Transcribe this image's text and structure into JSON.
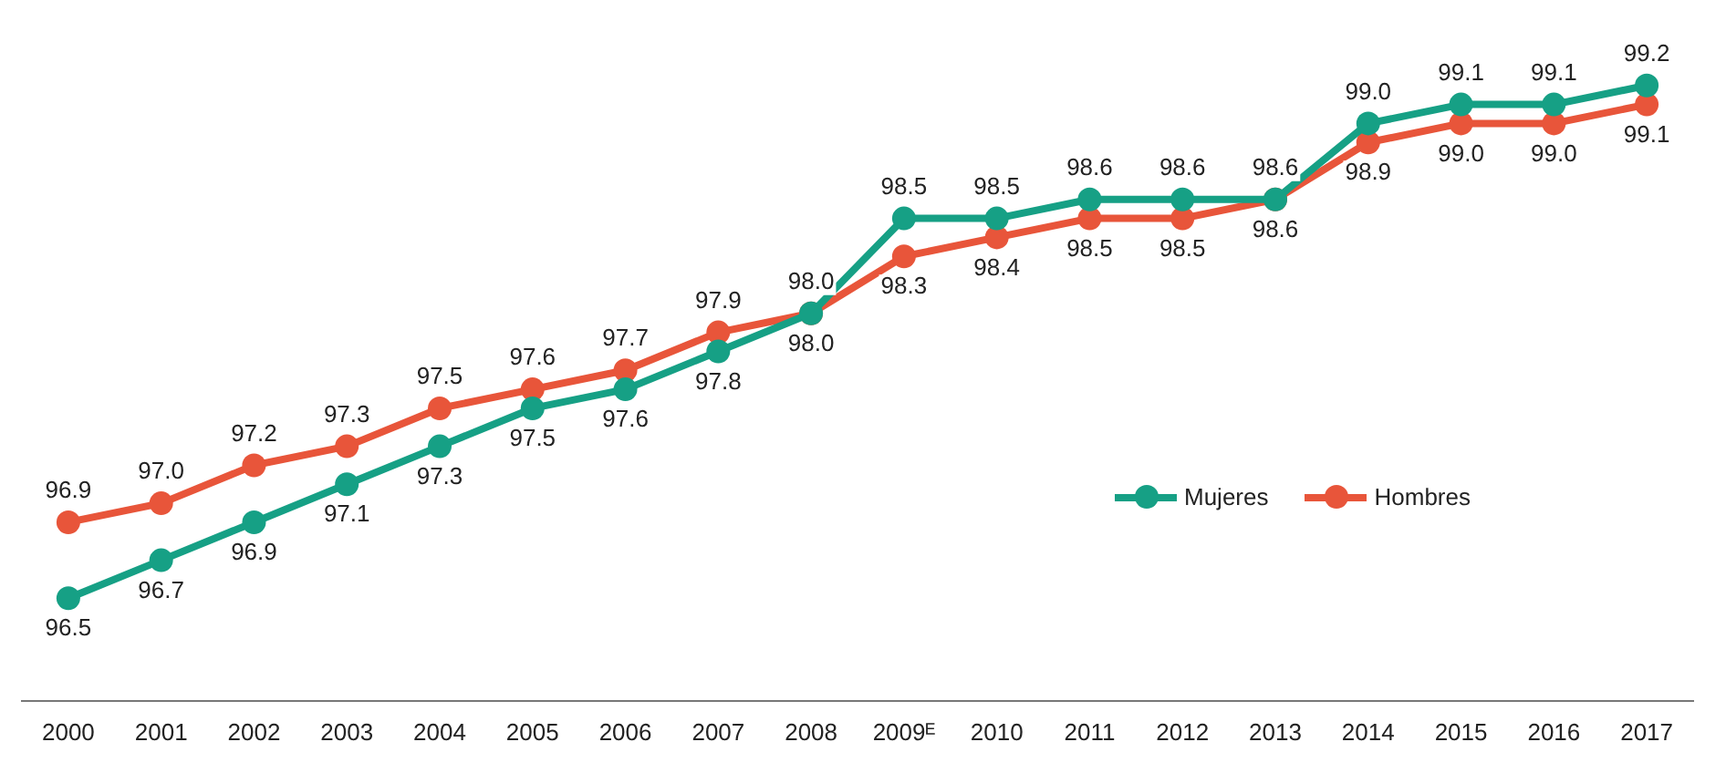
{
  "chart_data": {
    "type": "line",
    "categories": [
      "2000",
      "2001",
      "2002",
      "2003",
      "2004",
      "2005",
      "2006",
      "2007",
      "2008",
      "2009ᴱ",
      "2010",
      "2011",
      "2012",
      "2013",
      "2014",
      "2015",
      "2016",
      "2017"
    ],
    "series": [
      {
        "name": "Mujeres",
        "color": "#16a085",
        "values": [
          96.5,
          96.7,
          96.9,
          97.1,
          97.3,
          97.5,
          97.6,
          97.8,
          98.0,
          98.5,
          98.5,
          98.6,
          98.6,
          98.6,
          99.0,
          99.1,
          99.1,
          99.2
        ],
        "value_labels": [
          "96.5",
          "96.7",
          "96.9",
          "97.1",
          "97.3",
          "97.5",
          "97.6",
          "97.8",
          "98.0",
          "98.5",
          "98.5",
          "98.6",
          "98.6",
          "98.6",
          "99.0",
          "99.1",
          "99.1",
          "99.2"
        ]
      },
      {
        "name": "Hombres",
        "color": "#e8553a",
        "values": [
          96.9,
          97.0,
          97.2,
          97.3,
          97.5,
          97.6,
          97.7,
          97.9,
          98.0,
          98.3,
          98.4,
          98.5,
          98.5,
          98.6,
          98.9,
          99.0,
          99.0,
          99.1
        ],
        "value_labels": [
          "96.9",
          "97.0",
          "97.2",
          "97.3",
          "97.5",
          "97.6",
          "97.7",
          "97.9",
          "98.0",
          "98.3",
          "98.4",
          "98.5",
          "98.5",
          "98.6",
          "98.9",
          "99.0",
          "99.0",
          "99.1"
        ]
      }
    ],
    "legend": "right",
    "marker": "circle",
    "line_style": "solid"
  }
}
